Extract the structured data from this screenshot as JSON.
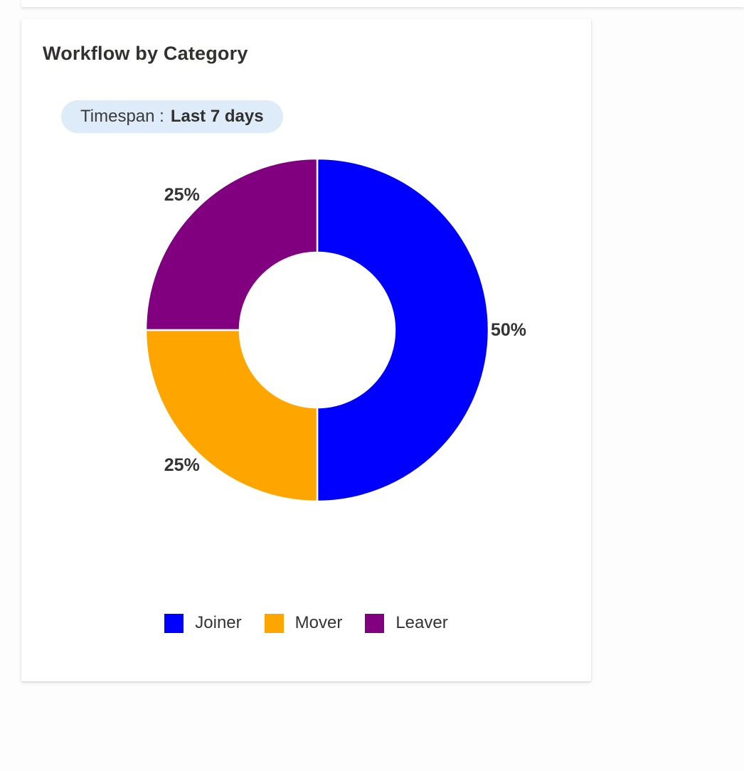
{
  "card": {
    "title": "Workflow by Category",
    "timespan": {
      "label": "Timespan :",
      "value": "Last 7 days",
      "badge_bg": "#deecf9"
    }
  },
  "chart_data": {
    "type": "pie",
    "variant": "donut",
    "title": "Workflow by Category",
    "categories": [
      "Joiner",
      "Mover",
      "Leaver"
    ],
    "values": [
      50,
      25,
      25
    ],
    "unit": "%",
    "slice_labels": [
      "50%",
      "25%",
      "25%"
    ],
    "colors": [
      "#0000ff",
      "#ffa500",
      "#800080"
    ],
    "start_angle": "top",
    "direction": "clockwise",
    "inner_radius_ratio": 0.45,
    "slice_border_color": "#ffffff",
    "label_color": "#333333",
    "legend_position": "bottom"
  },
  "legend": {
    "items": [
      {
        "label": "Joiner",
        "color": "#0000ff"
      },
      {
        "label": "Mover",
        "color": "#ffa500"
      },
      {
        "label": "Leaver",
        "color": "#800080"
      }
    ]
  }
}
